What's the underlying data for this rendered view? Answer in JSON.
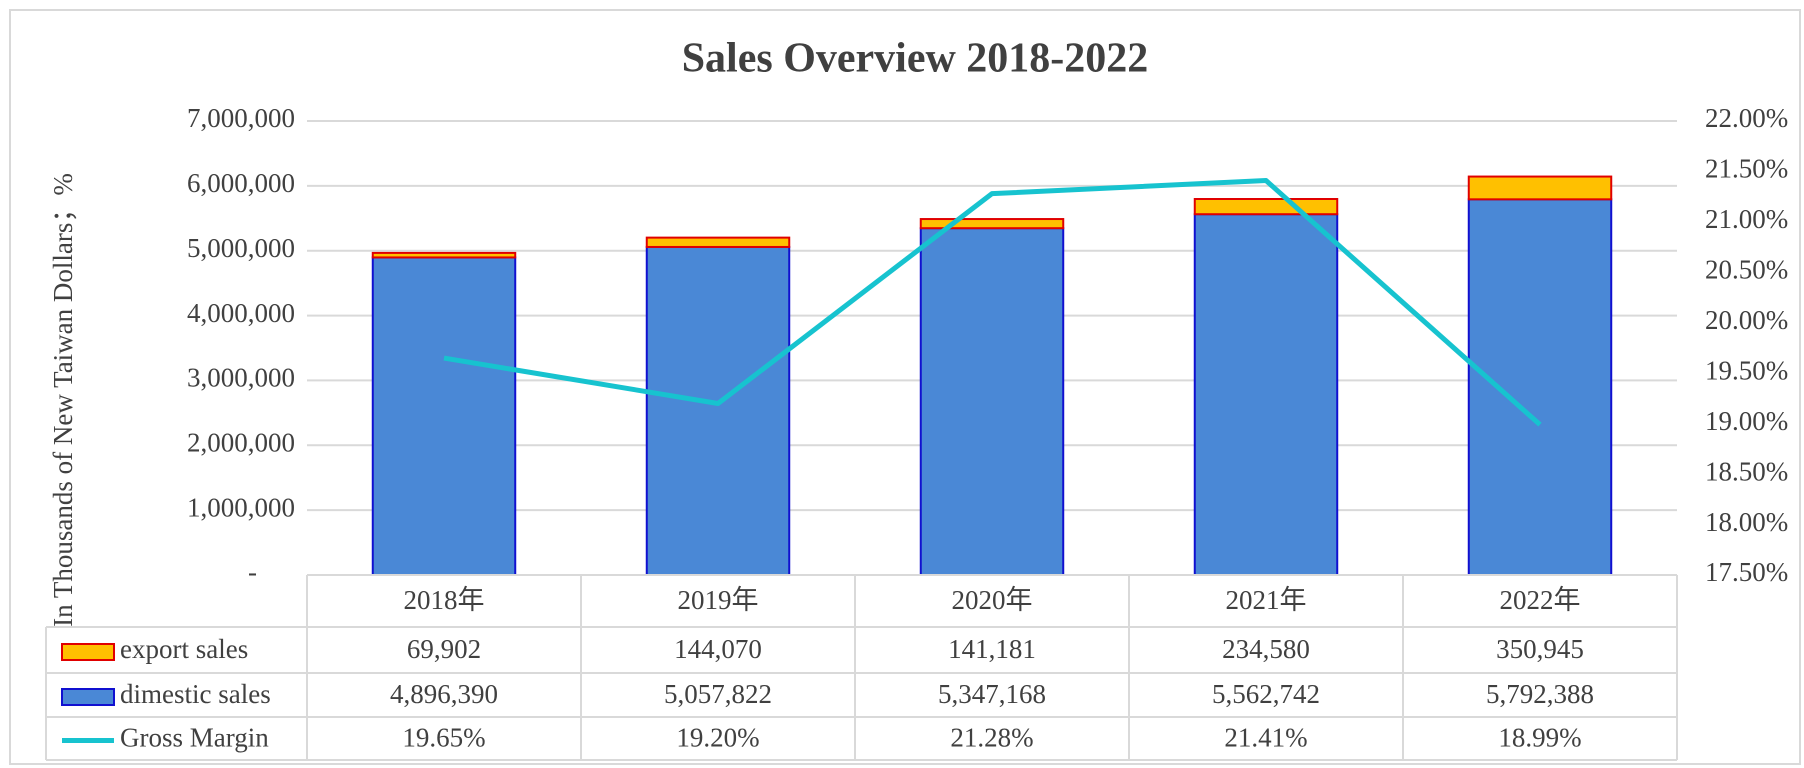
{
  "chart_data": {
    "type": "bar",
    "title": "Sales Overview 2018-2022",
    "ylabel": "In Thousands of New Taiwan Dollars；%",
    "categories": [
      "2018年",
      "2019年",
      "2020年",
      "2021年",
      "2022年"
    ],
    "stacked": true,
    "series": [
      {
        "name": "export sales",
        "type": "bar",
        "color": "#ffc000",
        "edge_color": "#e00000",
        "values": [
          69902,
          144070,
          141181,
          234580,
          350945
        ],
        "value_labels": [
          "69,902",
          "144,070",
          "141,181",
          "234,580",
          "350,945"
        ]
      },
      {
        "name": "dimestic sales",
        "type": "bar",
        "color": "#4a88d6",
        "edge_color": "#1010d0",
        "values": [
          4896390,
          5057822,
          5347168,
          5562742,
          5792388
        ],
        "value_labels": [
          "4,896,390",
          "5,057,822",
          "5,347,168",
          "5,562,742",
          "5,792,388"
        ]
      },
      {
        "name": "Gross Margin",
        "type": "line",
        "axis": "y2",
        "color": "#17c3cf",
        "values": [
          19.65,
          19.2,
          21.28,
          21.41,
          18.99
        ],
        "value_labels": [
          "19.65%",
          "19.20%",
          "21.28%",
          "21.41%",
          "18.99%"
        ]
      }
    ],
    "ylim": [
      0,
      7000000
    ],
    "yticks": [
      {
        "value": 0,
        "label": "-"
      },
      {
        "value": 1000000,
        "label": "1,000,000"
      },
      {
        "value": 2000000,
        "label": "2,000,000"
      },
      {
        "value": 3000000,
        "label": "3,000,000"
      },
      {
        "value": 4000000,
        "label": "4,000,000"
      },
      {
        "value": 5000000,
        "label": "5,000,000"
      },
      {
        "value": 6000000,
        "label": "6,000,000"
      },
      {
        "value": 7000000,
        "label": "7,000,000"
      }
    ],
    "y2lim": [
      17.5,
      22
    ],
    "y2ticks": [
      {
        "value": 17.5,
        "label": "17.50%"
      },
      {
        "value": 18,
        "label": "18.00%"
      },
      {
        "value": 18.5,
        "label": "18.50%"
      },
      {
        "value": 19,
        "label": "19.00%"
      },
      {
        "value": 19.5,
        "label": "19.50%"
      },
      {
        "value": 20,
        "label": "20.00%"
      },
      {
        "value": 20.5,
        "label": "20.50%"
      },
      {
        "value": 21,
        "label": "21.00%"
      },
      {
        "value": 21.5,
        "label": "21.50%"
      },
      {
        "value": 22,
        "label": "22.00%"
      }
    ],
    "grid": true
  }
}
